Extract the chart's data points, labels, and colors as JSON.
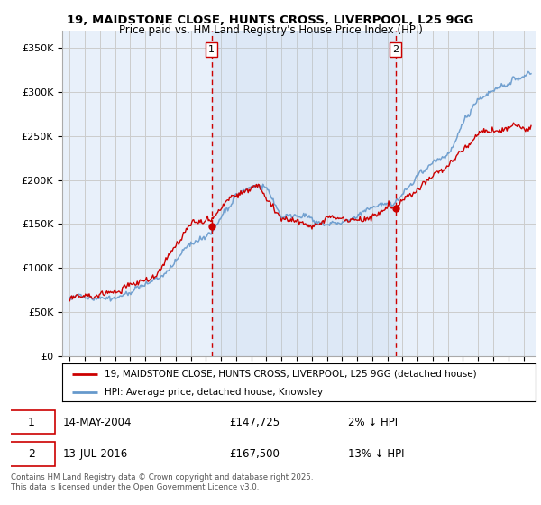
{
  "title1": "19, MAIDSTONE CLOSE, HUNTS CROSS, LIVERPOOL, L25 9GG",
  "title2": "Price paid vs. HM Land Registry's House Price Index (HPI)",
  "ylabel_ticks": [
    "£0",
    "£50K",
    "£100K",
    "£150K",
    "£200K",
    "£250K",
    "£300K",
    "£350K"
  ],
  "ylim": [
    0,
    370000
  ],
  "ytick_values": [
    0,
    50000,
    100000,
    150000,
    200000,
    250000,
    300000,
    350000
  ],
  "sale1_date": "14-MAY-2004",
  "sale1_price": 147725,
  "sale1_x": 2004.37,
  "sale2_date": "13-JUL-2016",
  "sale2_price": 167500,
  "sale2_x": 2016.54,
  "legend_label_red": "19, MAIDSTONE CLOSE, HUNTS CROSS, LIVERPOOL, L25 9GG (detached house)",
  "legend_label_blue": "HPI: Average price, detached house, Knowsley",
  "footer": "Contains HM Land Registry data © Crown copyright and database right 2025.\nThis data is licensed under the Open Government Licence v3.0.",
  "red_color": "#cc0000",
  "blue_color": "#6699cc",
  "blue_fill": "#dce8f5",
  "vline_color": "#cc0000",
  "grid_color": "#cccccc",
  "bg_color": "#e8f0fa",
  "xlim_start": 1994.5,
  "xlim_end": 2025.8,
  "hpi_key_points": [
    [
      1995.0,
      65000
    ],
    [
      1996.0,
      68000
    ],
    [
      1997.0,
      72000
    ],
    [
      1998.0,
      76000
    ],
    [
      1999.0,
      82000
    ],
    [
      2000.0,
      90000
    ],
    [
      2001.0,
      100000
    ],
    [
      2002.0,
      118000
    ],
    [
      2003.0,
      138000
    ],
    [
      2004.37,
      152000
    ],
    [
      2005.0,
      168000
    ],
    [
      2006.0,
      188000
    ],
    [
      2007.0,
      200000
    ],
    [
      2007.5,
      202000
    ],
    [
      2008.0,
      192000
    ],
    [
      2009.0,
      160000
    ],
    [
      2010.0,
      163000
    ],
    [
      2011.0,
      158000
    ],
    [
      2012.0,
      155000
    ],
    [
      2013.0,
      157000
    ],
    [
      2014.0,
      160000
    ],
    [
      2015.0,
      166000
    ],
    [
      2016.0,
      172000
    ],
    [
      2016.54,
      175000
    ],
    [
      2017.0,
      185000
    ],
    [
      2018.0,
      200000
    ],
    [
      2019.0,
      215000
    ],
    [
      2020.0,
      225000
    ],
    [
      2021.0,
      255000
    ],
    [
      2022.0,
      285000
    ],
    [
      2023.0,
      300000
    ],
    [
      2024.0,
      310000
    ],
    [
      2025.5,
      320000
    ]
  ],
  "prop_key_points": [
    [
      1995.0,
      63000
    ],
    [
      1996.0,
      66000
    ],
    [
      1997.0,
      70000
    ],
    [
      1998.0,
      74000
    ],
    [
      1999.0,
      80000
    ],
    [
      2000.0,
      88000
    ],
    [
      2001.0,
      98000
    ],
    [
      2002.0,
      116000
    ],
    [
      2003.0,
      136000
    ],
    [
      2004.37,
      147725
    ],
    [
      2005.0,
      162000
    ],
    [
      2006.0,
      182000
    ],
    [
      2007.0,
      198000
    ],
    [
      2007.5,
      200000
    ],
    [
      2008.0,
      188000
    ],
    [
      2009.0,
      157000
    ],
    [
      2010.0,
      160000
    ],
    [
      2011.0,
      155000
    ],
    [
      2012.0,
      152000
    ],
    [
      2013.0,
      154000
    ],
    [
      2014.0,
      157000
    ],
    [
      2015.0,
      163000
    ],
    [
      2016.0,
      169000
    ],
    [
      2016.54,
      167500
    ],
    [
      2017.0,
      178000
    ],
    [
      2018.0,
      192000
    ],
    [
      2019.0,
      205000
    ],
    [
      2020.0,
      215000
    ],
    [
      2021.0,
      238000
    ],
    [
      2022.0,
      255000
    ],
    [
      2023.0,
      262000
    ],
    [
      2024.0,
      265000
    ],
    [
      2025.5,
      262000
    ]
  ]
}
